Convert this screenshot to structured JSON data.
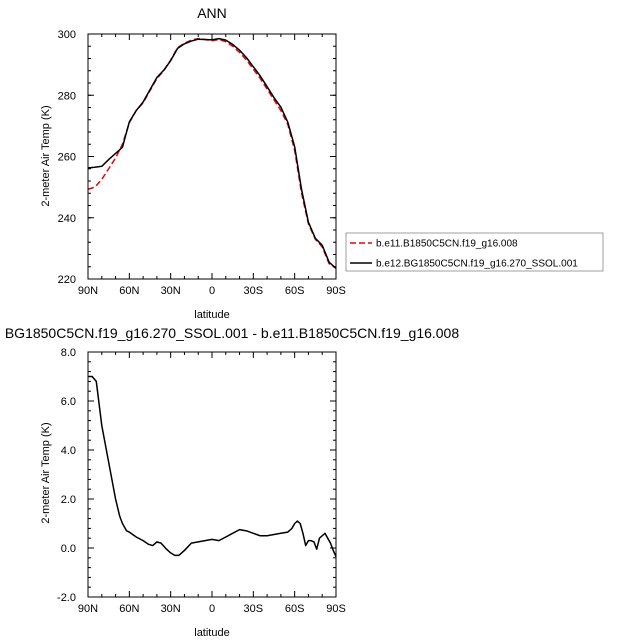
{
  "chart_data": [
    {
      "type": "line",
      "title": "ANN",
      "xlabel": "latitude",
      "ylabel": "2-meter Air Temp (K)",
      "xlim": [
        90,
        -90
      ],
      "ylim": [
        220,
        300
      ],
      "xticks": [
        90,
        60,
        30,
        0,
        -30,
        -60,
        -90
      ],
      "xtick_labels": [
        "90N",
        "60N",
        "30N",
        "0",
        "30S",
        "60S",
        "90S"
      ],
      "yticks": [
        220,
        240,
        260,
        280,
        300
      ],
      "ytick_labels": [
        "220",
        "240",
        "260",
        "280",
        "300"
      ],
      "legend_position": "right",
      "series": [
        {
          "name": "b.e11.B1850C5CN.f19_g16.008",
          "color": "#e8000b",
          "style": "dashed",
          "x": [
            90,
            85,
            80,
            75,
            70,
            65,
            60,
            55,
            50,
            45,
            40,
            35,
            30,
            25,
            20,
            15,
            10,
            5,
            0,
            -5,
            -10,
            -15,
            -20,
            -25,
            -30,
            -35,
            -40,
            -45,
            -50,
            -55,
            -60,
            -65,
            -70,
            -75,
            -80,
            -85,
            -90
          ],
          "y": [
            249.3,
            250,
            252.5,
            256,
            259.5,
            264,
            271,
            275,
            277.5,
            281.5,
            285.5,
            288,
            291.5,
            295.5,
            297,
            298,
            298.5,
            298.2,
            297.8,
            298.2,
            297.5,
            296,
            294,
            291.5,
            288.5,
            285.5,
            282,
            278.5,
            275,
            270.5,
            262,
            248,
            238,
            233,
            230.5,
            225,
            223.5
          ]
        },
        {
          "name": "b.e12.BG1850C5CN.f19_g16.270_SSOL.001",
          "color": "#000000",
          "style": "solid",
          "x": [
            90,
            85,
            80,
            75,
            70,
            65,
            60,
            55,
            50,
            45,
            40,
            35,
            30,
            25,
            20,
            15,
            10,
            5,
            0,
            -5,
            -10,
            -15,
            -20,
            -25,
            -30,
            -35,
            -40,
            -45,
            -50,
            -55,
            -60,
            -65,
            -70,
            -75,
            -80,
            -85,
            -90
          ],
          "y": [
            256.3,
            256.5,
            256.8,
            259,
            261,
            263,
            271.3,
            275,
            277.8,
            281.8,
            285.8,
            288.2,
            291.3,
            295.3,
            296.8,
            297.7,
            298.3,
            298.2,
            298.1,
            298.5,
            298,
            296.6,
            294.7,
            292.3,
            289.3,
            286.3,
            282.8,
            279.2,
            276.1,
            271.2,
            263.2,
            249.2,
            238.5,
            233.3,
            231,
            225.5,
            223.5
          ]
        }
      ]
    },
    {
      "type": "line",
      "title": "BG1850C5CN.f19_g16.270_SSOL.001 - b.e11.B1850C5CN.f19_g16.008",
      "xlabel": "latitude",
      "ylabel": "2-meter Air Temp (K)",
      "xlim": [
        90,
        -90
      ],
      "ylim": [
        -2,
        8
      ],
      "xticks": [
        90,
        60,
        30,
        0,
        -30,
        -60,
        -90
      ],
      "xtick_labels": [
        "90N",
        "60N",
        "30N",
        "0",
        "30S",
        "60S",
        "90S"
      ],
      "yticks": [
        -2,
        0,
        2,
        4,
        6,
        8
      ],
      "ytick_labels": [
        "-2.0",
        "0.0",
        "2.0",
        "4.0",
        "6.0",
        "8.0"
      ],
      "series": [
        {
          "color": "#000000",
          "style": "solid",
          "x": [
            90,
            87,
            84,
            80,
            75,
            70,
            67,
            65,
            62,
            60,
            55,
            50,
            46,
            43,
            40,
            37,
            33,
            30,
            27,
            24,
            20,
            15,
            10,
            5,
            0,
            -5,
            -10,
            -15,
            -20,
            -25,
            -30,
            -35,
            -40,
            -45,
            -50,
            -55,
            -58,
            -60,
            -62,
            -64,
            -66,
            -68,
            -70,
            -72,
            -74,
            -76,
            -78,
            -80,
            -82,
            -84,
            -86,
            -88,
            -90
          ],
          "y": [
            7.0,
            7.0,
            6.8,
            5.0,
            3.5,
            2.0,
            1.3,
            1.0,
            0.7,
            0.65,
            0.45,
            0.3,
            0.15,
            0.1,
            0.25,
            0.2,
            -0.05,
            -0.2,
            -0.3,
            -0.3,
            -0.1,
            0.2,
            0.25,
            0.3,
            0.35,
            0.3,
            0.45,
            0.6,
            0.75,
            0.7,
            0.6,
            0.5,
            0.5,
            0.55,
            0.6,
            0.65,
            0.8,
            1.0,
            1.1,
            1.0,
            0.6,
            0.1,
            0.3,
            0.3,
            0.25,
            -0.05,
            0.4,
            0.5,
            0.6,
            0.4,
            0.2,
            -0.1,
            -0.35
          ]
        }
      ]
    }
  ]
}
